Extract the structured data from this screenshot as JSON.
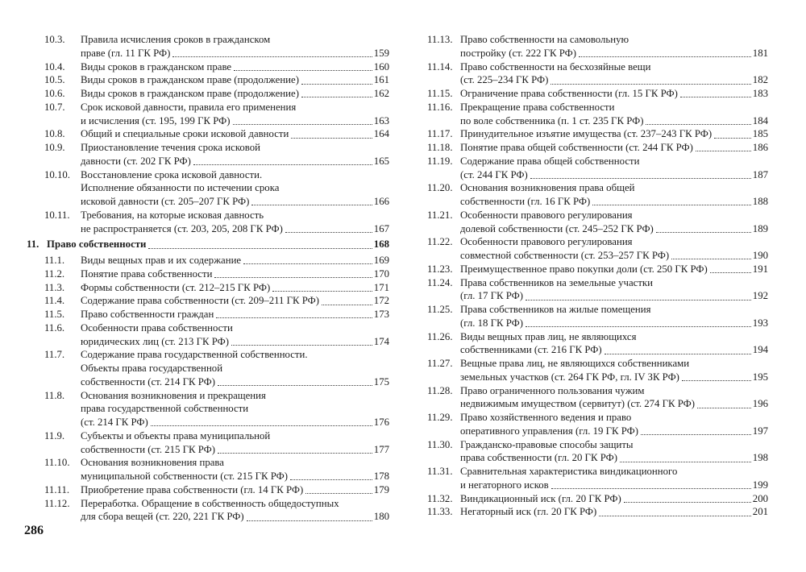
{
  "page": {
    "footer_page_number": "286"
  },
  "toc": {
    "left_column": [
      {
        "num": "10.3.",
        "lines": [
          "Правила исчисления сроков в гражданском",
          "праве (гл. 11 ГК РФ)"
        ],
        "page": "159"
      },
      {
        "num": "10.4.",
        "lines": [
          "Виды сроков в гражданском праве"
        ],
        "page": "160"
      },
      {
        "num": "10.5.",
        "lines": [
          "Виды сроков в гражданском праве (продолжение)"
        ],
        "page": "161"
      },
      {
        "num": "10.6.",
        "lines": [
          "Виды сроков в гражданском праве (продолжение)"
        ],
        "page": "162"
      },
      {
        "num": "10.7.",
        "lines": [
          "Срок исковой давности, правила его применения",
          "и исчисления (ст. 195, 199 ГК РФ)"
        ],
        "page": "163"
      },
      {
        "num": "10.8.",
        "lines": [
          "Общий и специальные сроки исковой давности"
        ],
        "page": "164"
      },
      {
        "num": "10.9.",
        "lines": [
          "Приостановление течения срока исковой",
          "давности (ст. 202 ГК РФ)"
        ],
        "page": "165"
      },
      {
        "num": "10.10.",
        "lines": [
          "Восстановление срока исковой давности.",
          "Исполнение обязанности по истечении срока",
          "исковой давности (ст. 205–207 ГК РФ)"
        ],
        "page": "166"
      },
      {
        "num": "10.11.",
        "lines": [
          "Требования, на которые исковая давность",
          "не распространяется (ст. 203, 205, 208 ГК РФ)"
        ],
        "page": "167"
      },
      {
        "num": "11.",
        "lines": [
          "Право собственности"
        ],
        "page": "168",
        "chapter": true
      },
      {
        "num": "11.1.",
        "lines": [
          "Виды вещных прав и их содержание"
        ],
        "page": "169"
      },
      {
        "num": "11.2.",
        "lines": [
          "Понятие права собственности"
        ],
        "page": "170"
      },
      {
        "num": "11.3.",
        "lines": [
          "Формы собственности (ст. 212–215 ГК РФ)"
        ],
        "page": "171"
      },
      {
        "num": "11.4.",
        "lines": [
          "Содержание права собственности (ст. 209–211 ГК РФ)"
        ],
        "page": "172"
      },
      {
        "num": "11.5.",
        "lines": [
          "Право собственности граждан"
        ],
        "page": "173"
      },
      {
        "num": "11.6.",
        "lines": [
          "Особенности права собственности",
          "юридических лиц (ст. 213 ГК РФ)"
        ],
        "page": "174"
      },
      {
        "num": "11.7.",
        "lines": [
          "Содержание права государственной собственности.",
          "Объекты права государственной",
          "собственности (ст. 214 ГК РФ)"
        ],
        "page": "175"
      },
      {
        "num": "11.8.",
        "lines": [
          "Основания возникновения и прекращения",
          "права государственной собственности",
          "(ст. 214 ГК РФ)"
        ],
        "page": "176"
      },
      {
        "num": "11.9.",
        "lines": [
          "Субъекты и объекты права муниципальной",
          "собственности (ст. 215 ГК РФ)"
        ],
        "page": "177"
      },
      {
        "num": "11.10.",
        "lines": [
          "Основания возникновения права",
          "муниципальной собственности (ст. 215 ГК РФ)"
        ],
        "page": "178"
      },
      {
        "num": "11.11.",
        "lines": [
          "Приобретение права собственности (гл. 14 ГК РФ)"
        ],
        "page": "179"
      },
      {
        "num": "11.12.",
        "lines": [
          "Переработка. Обращение в собственность общедоступных",
          "для сбора вещей (ст. 220, 221 ГК РФ)"
        ],
        "page": "180"
      }
    ],
    "right_column": [
      {
        "num": "11.13.",
        "lines": [
          "Право собственности на самовольную",
          "постройку (ст. 222 ГК РФ)"
        ],
        "page": "181"
      },
      {
        "num": "11.14.",
        "lines": [
          "Право собственности на бесхозяйные вещи",
          "(ст. 225–234 ГК РФ)"
        ],
        "page": "182"
      },
      {
        "num": "11.15.",
        "lines": [
          "Ограничение права собственности (гл. 15 ГК РФ)"
        ],
        "page": "183"
      },
      {
        "num": "11.16.",
        "lines": [
          "Прекращение права собственности",
          "по воле собственника (п. 1 ст. 235 ГК РФ)"
        ],
        "page": "184"
      },
      {
        "num": "11.17.",
        "lines": [
          "Принудительное изъятие имущества (ст. 237–243 ГК РФ)"
        ],
        "page": "185"
      },
      {
        "num": "11.18.",
        "lines": [
          "Понятие права общей собственности (ст. 244 ГК РФ)"
        ],
        "page": "186"
      },
      {
        "num": "11.19.",
        "lines": [
          "Содержание права общей собственности",
          "(ст. 244 ГК РФ)"
        ],
        "page": "187"
      },
      {
        "num": "11.20.",
        "lines": [
          "Основания возникновения права общей",
          "собственности (гл. 16 ГК РФ)"
        ],
        "page": "188"
      },
      {
        "num": "11.21.",
        "lines": [
          "Особенности правового регулирования",
          "долевой собственности (ст. 245–252 ГК РФ)"
        ],
        "page": "189"
      },
      {
        "num": "11.22.",
        "lines": [
          "Особенности правового регулирования",
          "совместной собственности (ст. 253–257 ГК РФ)"
        ],
        "page": "190"
      },
      {
        "num": "11.23.",
        "lines": [
          "Преимущественное право покупки доли (ст. 250 ГК РФ)"
        ],
        "page": "191"
      },
      {
        "num": "11.24.",
        "lines": [
          "Права собственников на земельные участки",
          "(гл. 17 ГК РФ)"
        ],
        "page": "192"
      },
      {
        "num": "11.25.",
        "lines": [
          "Права собственников на жилые помещения",
          "(гл. 18 ГК РФ)"
        ],
        "page": "193"
      },
      {
        "num": "11.26.",
        "lines": [
          "Виды вещных прав лиц, не являющихся",
          "собственниками (ст. 216 ГК РФ)"
        ],
        "page": "194"
      },
      {
        "num": "11.27.",
        "lines": [
          "Вещные права лиц, не являющихся собственниками",
          "земельных участков (ст. 264 ГК РФ, гл. IV ЗК РФ)"
        ],
        "page": "195"
      },
      {
        "num": "11.28.",
        "lines": [
          "Право ограниченного пользования чужим",
          "недвижимым имуществом (сервитут) (ст. 274 ГК РФ)"
        ],
        "page": "196"
      },
      {
        "num": "11.29.",
        "lines": [
          "Право хозяйственного ведения и право",
          "оперативного управления (гл. 19 ГК РФ)"
        ],
        "page": "197"
      },
      {
        "num": "11.30.",
        "lines": [
          "Гражданско-правовые способы защиты",
          "права собственности (гл. 20 ГК РФ)"
        ],
        "page": "198"
      },
      {
        "num": "11.31.",
        "lines": [
          "Сравнительная характеристика виндикационного",
          "и негаторного исков"
        ],
        "page": "199"
      },
      {
        "num": "11.32.",
        "lines": [
          "Виндикационный иск (гл. 20 ГК РФ)"
        ],
        "page": "200"
      },
      {
        "num": "11.33.",
        "lines": [
          "Негаторный иск (гл. 20 ГК РФ)"
        ],
        "page": "201"
      }
    ]
  }
}
